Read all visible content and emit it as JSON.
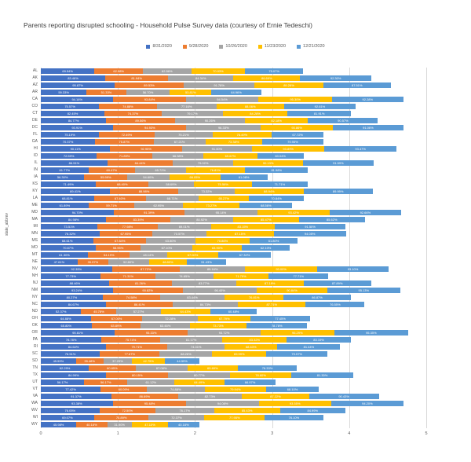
{
  "title": "Parents reporting disrupted schooling - Household Pulse Survey data (courtesy of Ernie Tedeschi)",
  "y_axis_title": "state_abbrev",
  "x_ticks": [
    "0",
    "1",
    "2",
    "3",
    "4",
    "5"
  ],
  "chart_data": {
    "type": "bar",
    "orientation": "horizontal",
    "stacked": true,
    "title": "Parents reporting disrupted schooling - Household Pulse Survey data (courtesy of Ernie Tedeschi)",
    "xlabel": "",
    "ylabel": "state_abbrev",
    "xlim": [
      0,
      5
    ],
    "grid": true,
    "legend_position": "top",
    "value_unit": "percent, 100% = 1 axis unit",
    "categories": [
      "AL",
      "AK",
      "AZ",
      "AR",
      "CA",
      "CO",
      "CT",
      "DE",
      "DC",
      "FL",
      "GA",
      "HI",
      "ID",
      "IL",
      "IN",
      "IA",
      "KS",
      "KY",
      "LA",
      "ME",
      "MD",
      "MA",
      "MI",
      "MN",
      "MS",
      "MO",
      "MT",
      "NE",
      "NV",
      "NH",
      "NJ",
      "NM",
      "NY",
      "NC",
      "ND",
      "OH",
      "OK",
      "OR",
      "PA",
      "RI",
      "SC",
      "SD",
      "TN",
      "TX",
      "UT",
      "VT",
      "VA",
      "WA",
      "WV",
      "WI",
      "WY"
    ],
    "series": [
      {
        "name": "8/31/2020",
        "color": "#4472C4",
        "values": [
          69.54,
          83.46,
          95.87,
          59.33,
          94.16,
          75.57,
          82.45,
          84.77,
          93.91,
          75.19,
          70.37,
          90.11,
          72.59,
          86.51,
          61.77,
          56.3,
          71.49,
          89.41,
          68.81,
          61.89,
          94.7,
          84.98,
          73.51,
          76.32,
          68.61,
          70.87,
          61.3,
          47.61,
          92.35,
          77.73,
          88.46,
          93.24,
          80.27,
          84.67,
          52.37,
          64.88,
          65.8,
          95.61,
          78.78,
          84.64,
          76.51,
          45.59,
          62.29,
          84.99,
          56.17,
          77.42,
          91.37,
          93.38,
          76.05,
          69.07,
          45.98
        ]
      },
      {
        "name": "9/28/2020",
        "color": "#ED7D31",
        "values": [
          62.98,
          81.94,
          89.53,
          51.33,
          93.84,
          74.88,
          74.37,
          89.56,
          94.93,
          72.49,
          75.87,
          92.95,
          71.89,
          84.44,
          60.47,
          55.99,
          68.4,
          88.98,
          67.4,
          59.71,
          91.39,
          83.39,
          77.98,
          67.95,
          67.84,
          58.95,
          54.19,
          39.97,
          87.72,
          71.31,
          81.26,
          90.82,
          74.58,
          86.41,
          45.78,
          67.0,
          63.89,
          95.33,
          75.74,
          79.71,
          77.67,
          35.48,
          60.65,
          80.15,
          56.17,
          60.09,
          86.69,
          95.48,
          72.5,
          70.89,
          40.16
        ]
      },
      {
        "name": "10/26/2020",
        "color": "#A5A5A5",
        "values": [
          62.56,
          84.34,
          91.78,
          56.7,
          94.54,
          77.16,
          79.17,
          90.26,
          96.33,
          75.21,
          67.21,
          91.0,
          66.58,
          79.02,
          65.72,
          54.6,
          58.69,
          73.32,
          68.71,
          62.95,
          95.14,
          80.92,
          69.01,
          70.57,
          63.8,
          67.1,
          48.14,
          52.8,
          85.16,
          74.65,
          83.77,
          96.4,
          83.44,
          84.73,
          57.27,
          72.28,
          63.46,
          93.72,
          81.17,
          74.01,
          68.26,
          37.29,
          67.08,
          80.77,
          61.12,
          74.88,
          82.73,
          94.08,
          76.17,
          72.37,
          31.9
        ]
      },
      {
        "name": "11/23/2020",
        "color": "#FFC000",
        "values": [
          70.03,
          86.69,
          89.26,
          53.81,
          95.3,
          88.06,
          84.28,
          82.18,
          93.86,
          76.49,
          73.38,
          93.89,
          69.67,
          90.13,
          76.81,
          66.05,
          75.56,
          88.94,
          65.27,
          73.27,
          93.42,
          85.47,
          83.15,
          87.15,
          70.86,
          63.9,
          67.0,
          48.8,
          93.0,
          71.79,
          87.19,
          90.84,
          76.81,
          87.71,
          64.43,
          67.79,
          73.73,
          96.29,
          83.32,
          68.63,
          69.99,
          42.75,
          65.69,
          78.6,
          64.49,
          79.94,
          87.22,
          93.55,
          85.43,
          77.95,
          47.1
        ]
      },
      {
        "name": "12/21/2020",
        "color": "#5B9BD5",
        "values": [
          75.07,
          92.3,
          87.51,
          64.96,
          92.28,
          92.61,
          81.91,
          90.57,
          91.06,
          67.72,
          79.95,
          93.47,
          60.04,
          91.59,
          81.98,
          61.08,
          71.71,
          89.99,
          70.84,
          68.56,
          92.66,
          85.62,
          91.5,
          94.05,
          61.8,
          62.1,
          67.32,
          51.43,
          93.1,
          77.71,
          87.89,
          95.13,
          86.87,
          76.55,
          60.48,
          77.45,
          78.78,
          95.35,
          83.19,
          81.44,
          79.57,
          44.59,
          76.33,
          81.3,
          66.97,
          68.1,
          90.43,
          94.2,
          84.99,
          76.1,
          40.16
        ]
      }
    ]
  }
}
